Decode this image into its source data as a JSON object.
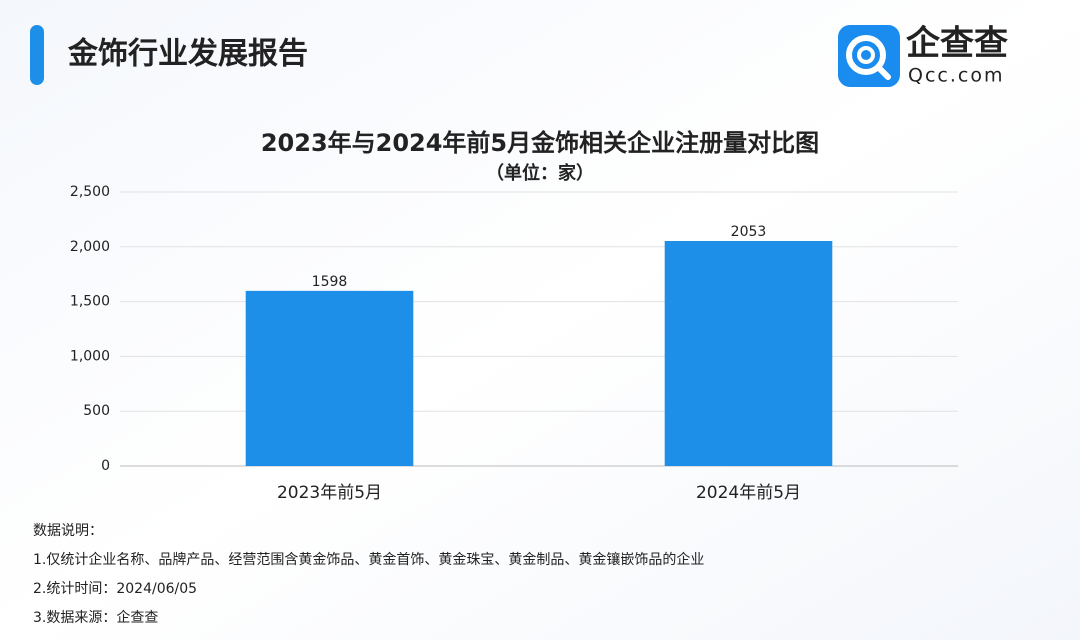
{
  "header": {
    "title": "金饰行业发展报告"
  },
  "logo": {
    "name": "企查查",
    "domain": "Qcc.com"
  },
  "chart_data": {
    "type": "bar",
    "title": "2023年与2024年前5月金饰相关企业注册量对比图",
    "subtitle": "（单位：家）",
    "categories": [
      "2023年前5月",
      "2024年前5月"
    ],
    "values": [
      1598,
      2053
    ],
    "color": "#1e8fe9",
    "ylim": [
      0,
      2500
    ],
    "yticks": [
      0,
      500,
      {
        "value": 1000,
        "label": "1,000"
      },
      {
        "value": 1500,
        "label": "1,500"
      },
      {
        "value": 2000,
        "label": "2,000"
      },
      {
        "value": 2500,
        "label": "2,500"
      }
    ],
    "grid": true
  },
  "notes": [
    "数据说明：",
    "1.仅统计企业名称、品牌产品、经营范围含黄金饰品、黄金首饰、黄金珠宝、黄金制品、黄金镶嵌饰品的企业",
    "2.统计时间：2024/06/05",
    "3.数据来源：企查查"
  ]
}
